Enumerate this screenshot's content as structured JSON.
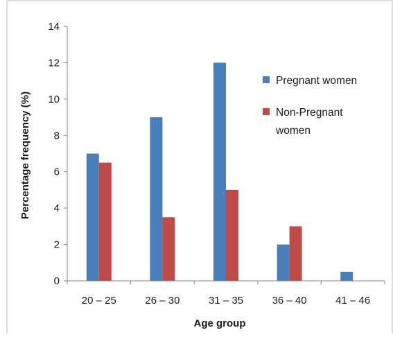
{
  "chart_data": {
    "type": "bar",
    "categories": [
      "20 – 25",
      "26 – 30",
      "31 – 35",
      "36 – 40",
      "41 – 46"
    ],
    "series": [
      {
        "name": "Pregnant women",
        "values": [
          7,
          9,
          12,
          2,
          0.5
        ],
        "color": "#4a7ebb"
      },
      {
        "name": "Non-Pregnant women",
        "values": [
          6.5,
          3.5,
          5,
          3,
          0
        ],
        "color": "#be4b48"
      }
    ],
    "title": "",
    "xlabel": "Age group",
    "ylabel": "Percentage frequency (%)",
    "ylim": [
      0,
      14
    ],
    "yticks": [
      "0",
      "2",
      "4",
      "6",
      "8",
      "10",
      "12",
      "14"
    ],
    "grid": false,
    "legend_position": "right",
    "legend": {
      "series1_label": "Pregnant women",
      "series2_label_line1": "Non-Pregnant",
      "series2_label_line2": "women"
    }
  }
}
